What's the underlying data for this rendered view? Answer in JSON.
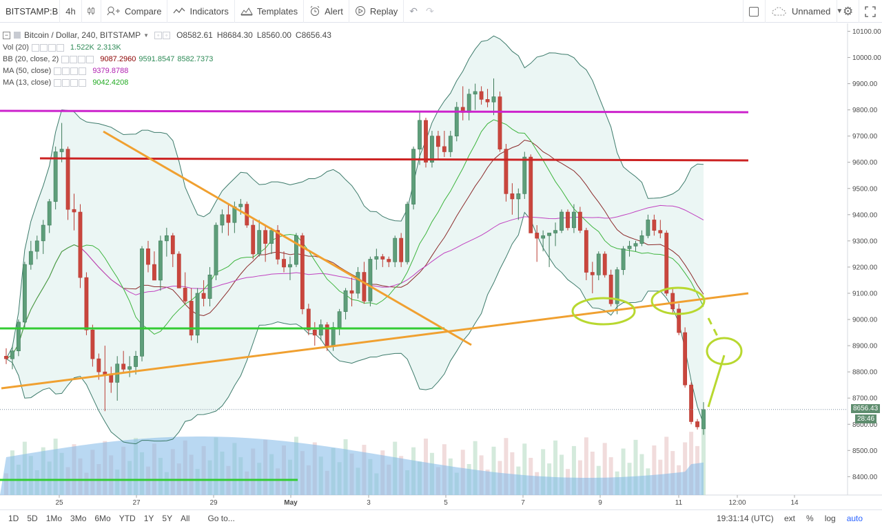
{
  "toolbar": {
    "symbol": "BITSTAMP:B",
    "interval": "4h",
    "compare": "Compare",
    "indicators": "Indicators",
    "templates": "Templates",
    "alert": "Alert",
    "replay": "Replay",
    "layout_name": "Unnamed"
  },
  "legend": {
    "title": "Bitcoin / Dollar, 240, BITSTAMP",
    "open": "O8582.61",
    "high": "H8684.30",
    "low": "L8560.00",
    "close": "C8656.43",
    "rows": [
      {
        "label": "Vol (20)",
        "values": [
          "1.522K",
          "2.313K"
        ],
        "colors": [
          "#2e8b57",
          "#2e8b57"
        ]
      },
      {
        "label": "BB (20, close, 2)",
        "values": [
          "9087.2960",
          "9591.8547",
          "8582.7373"
        ],
        "colors": [
          "#8b0000",
          "#2e8b57",
          "#2e8b57"
        ]
      },
      {
        "label": "MA (50, close)",
        "values": [
          "9379.8788"
        ],
        "colors": [
          "#b020b0"
        ]
      },
      {
        "label": "MA (13, close)",
        "values": [
          "9042.4208"
        ],
        "colors": [
          "#22aa22"
        ]
      }
    ]
  },
  "bottombar": {
    "ranges": [
      "1D",
      "5D",
      "1Mo",
      "3Mo",
      "6Mo",
      "YTD",
      "1Y",
      "5Y",
      "All"
    ],
    "goto": "Go to...",
    "clock": "19:31:14 (UTC)",
    "opts": [
      "ext",
      "%",
      "log",
      "auto"
    ]
  },
  "chart_data": {
    "type": "candlestick",
    "title": "Bitcoin / Dollar, 240, BITSTAMP",
    "x_ticks": [
      "25",
      "27",
      "29",
      "May",
      "3",
      "5",
      "7",
      "9",
      "11",
      "12:00",
      "14"
    ],
    "y_ticks": [
      10100,
      10000,
      9900,
      9800,
      9700,
      9600,
      9500,
      9400,
      9300,
      9200,
      9100,
      9000,
      8900,
      8800,
      8700,
      8600,
      8500,
      8400
    ],
    "ylim": [
      8330,
      10130
    ],
    "last_price": "8656.43",
    "countdown": "28:46",
    "candles": [
      [
        8860,
        8890,
        8830,
        8850
      ],
      [
        8850,
        8900,
        8810,
        8880
      ],
      [
        8880,
        9000,
        8860,
        8990
      ],
      [
        8990,
        9220,
        8970,
        9210
      ],
      [
        9210,
        9300,
        9190,
        9260
      ],
      [
        9260,
        9320,
        9230,
        9300
      ],
      [
        9300,
        9380,
        9250,
        9360
      ],
      [
        9360,
        9460,
        9330,
        9450
      ],
      [
        9450,
        9660,
        9420,
        9640
      ],
      [
        9640,
        9750,
        9600,
        9650
      ],
      [
        9650,
        9660,
        9380,
        9420
      ],
      [
        9420,
        9480,
        9340,
        9410
      ],
      [
        9410,
        9440,
        9120,
        9160
      ],
      [
        9160,
        9180,
        8940,
        8960
      ],
      [
        8960,
        8980,
        8820,
        8850
      ],
      [
        8850,
        8870,
        8770,
        8800
      ],
      [
        8800,
        8900,
        8650,
        8790
      ],
      [
        8790,
        8820,
        8720,
        8760
      ],
      [
        8760,
        8860,
        8690,
        8830
      ],
      [
        8830,
        8880,
        8800,
        8810
      ],
      [
        8810,
        8860,
        8780,
        8820
      ],
      [
        8820,
        8880,
        8790,
        8860
      ],
      [
        8860,
        9280,
        8840,
        9270
      ],
      [
        9270,
        9300,
        9180,
        9210
      ],
      [
        9210,
        9260,
        9150,
        9150
      ],
      [
        9150,
        9320,
        9110,
        9300
      ],
      [
        9300,
        9350,
        9240,
        9320
      ],
      [
        9320,
        9330,
        9200,
        9250
      ],
      [
        9250,
        9260,
        9120,
        9120
      ],
      [
        9120,
        9180,
        9060,
        9070
      ],
      [
        9070,
        9120,
        8920,
        8940
      ],
      [
        8940,
        9120,
        8910,
        9100
      ],
      [
        9100,
        9150,
        9050,
        9080
      ],
      [
        9080,
        9200,
        9050,
        9170
      ],
      [
        9170,
        9370,
        9150,
        9360
      ],
      [
        9360,
        9420,
        9330,
        9400
      ],
      [
        9400,
        9440,
        9320,
        9370
      ],
      [
        9370,
        9450,
        9330,
        9430
      ],
      [
        9430,
        9460,
        9400,
        9440
      ],
      [
        9440,
        9450,
        9350,
        9360
      ],
      [
        9360,
        9380,
        9230,
        9250
      ],
      [
        9250,
        9380,
        9240,
        9340
      ],
      [
        9340,
        9360,
        9220,
        9290
      ],
      [
        9290,
        9350,
        9250,
        9340
      ],
      [
        9340,
        9360,
        9210,
        9230
      ],
      [
        9230,
        9260,
        9180,
        9200
      ],
      [
        9200,
        9240,
        9150,
        9210
      ],
      [
        9210,
        9330,
        9200,
        9320
      ],
      [
        9320,
        9330,
        9020,
        9040
      ],
      [
        9040,
        9060,
        8940,
        8960
      ],
      [
        8960,
        8990,
        8900,
        8940
      ],
      [
        8940,
        9000,
        8920,
        8980
      ],
      [
        8980,
        8990,
        8880,
        8900
      ],
      [
        8900,
        8990,
        8880,
        8970
      ],
      [
        8970,
        9040,
        8940,
        9030
      ],
      [
        9030,
        9120,
        9000,
        9110
      ],
      [
        9110,
        9160,
        9050,
        9100
      ],
      [
        9100,
        9200,
        9080,
        9180
      ],
      [
        9180,
        9220,
        9060,
        9070
      ],
      [
        9070,
        9240,
        9050,
        9230
      ],
      [
        9230,
        9270,
        9190,
        9240
      ],
      [
        9240,
        9250,
        9200,
        9230
      ],
      [
        9230,
        9240,
        9200,
        9220
      ],
      [
        9220,
        9320,
        9200,
        9310
      ],
      [
        9310,
        9330,
        9200,
        9220
      ],
      [
        9220,
        9450,
        9210,
        9440
      ],
      [
        9440,
        9660,
        9420,
        9650
      ],
      [
        9650,
        9790,
        9590,
        9760
      ],
      [
        9760,
        9770,
        9580,
        9600
      ],
      [
        9600,
        9720,
        9580,
        9700
      ],
      [
        9700,
        9720,
        9610,
        9660
      ],
      [
        9660,
        9720,
        9620,
        9640
      ],
      [
        9640,
        9720,
        9620,
        9700
      ],
      [
        9700,
        9830,
        9680,
        9810
      ],
      [
        9810,
        9890,
        9760,
        9790
      ],
      [
        9790,
        9880,
        9760,
        9860
      ],
      [
        9860,
        9900,
        9800,
        9870
      ],
      [
        9870,
        9890,
        9820,
        9840
      ],
      [
        9840,
        9880,
        9810,
        9830
      ],
      [
        9830,
        9920,
        9780,
        9850
      ],
      [
        9850,
        9870,
        9640,
        9650
      ],
      [
        9650,
        9670,
        9450,
        9480
      ],
      [
        9480,
        9520,
        9400,
        9460
      ],
      [
        9460,
        9500,
        9380,
        9480
      ],
      [
        9480,
        9640,
        9460,
        9620
      ],
      [
        9620,
        9630,
        9330,
        9330
      ],
      [
        9330,
        9360,
        9220,
        9310
      ],
      [
        9310,
        9340,
        9260,
        9320
      ],
      [
        9320,
        9330,
        9200,
        9330
      ],
      [
        9330,
        9370,
        9280,
        9340
      ],
      [
        9340,
        9420,
        9330,
        9410
      ],
      [
        9410,
        9420,
        9340,
        9350
      ],
      [
        9350,
        9440,
        9330,
        9410
      ],
      [
        9410,
        9430,
        9330,
        9340
      ],
      [
        9340,
        9350,
        9150,
        9180
      ],
      [
        9180,
        9220,
        9100,
        9170
      ],
      [
        9170,
        9260,
        9150,
        9250
      ],
      [
        9250,
        9260,
        9160,
        9170
      ],
      [
        9170,
        9190,
        9050,
        9060
      ],
      [
        9060,
        9200,
        9020,
        9190
      ],
      [
        9190,
        9280,
        9170,
        9270
      ],
      [
        9270,
        9300,
        9240,
        9280
      ],
      [
        9280,
        9300,
        9260,
        9290
      ],
      [
        9290,
        9340,
        9280,
        9320
      ],
      [
        9320,
        9400,
        9310,
        9380
      ],
      [
        9380,
        9400,
        9320,
        9340
      ],
      [
        9340,
        9380,
        9310,
        9330
      ],
      [
        9330,
        9340,
        9090,
        9100
      ],
      [
        9100,
        9120,
        9020,
        9040
      ],
      [
        9040,
        9060,
        8940,
        8950
      ],
      [
        8950,
        8970,
        8740,
        8750
      ],
      [
        8750,
        8760,
        8600,
        8610
      ],
      [
        8610,
        8620,
        8580,
        8590
      ],
      [
        8582.61,
        8684.3,
        8560.0,
        8656.43
      ]
    ]
  }
}
